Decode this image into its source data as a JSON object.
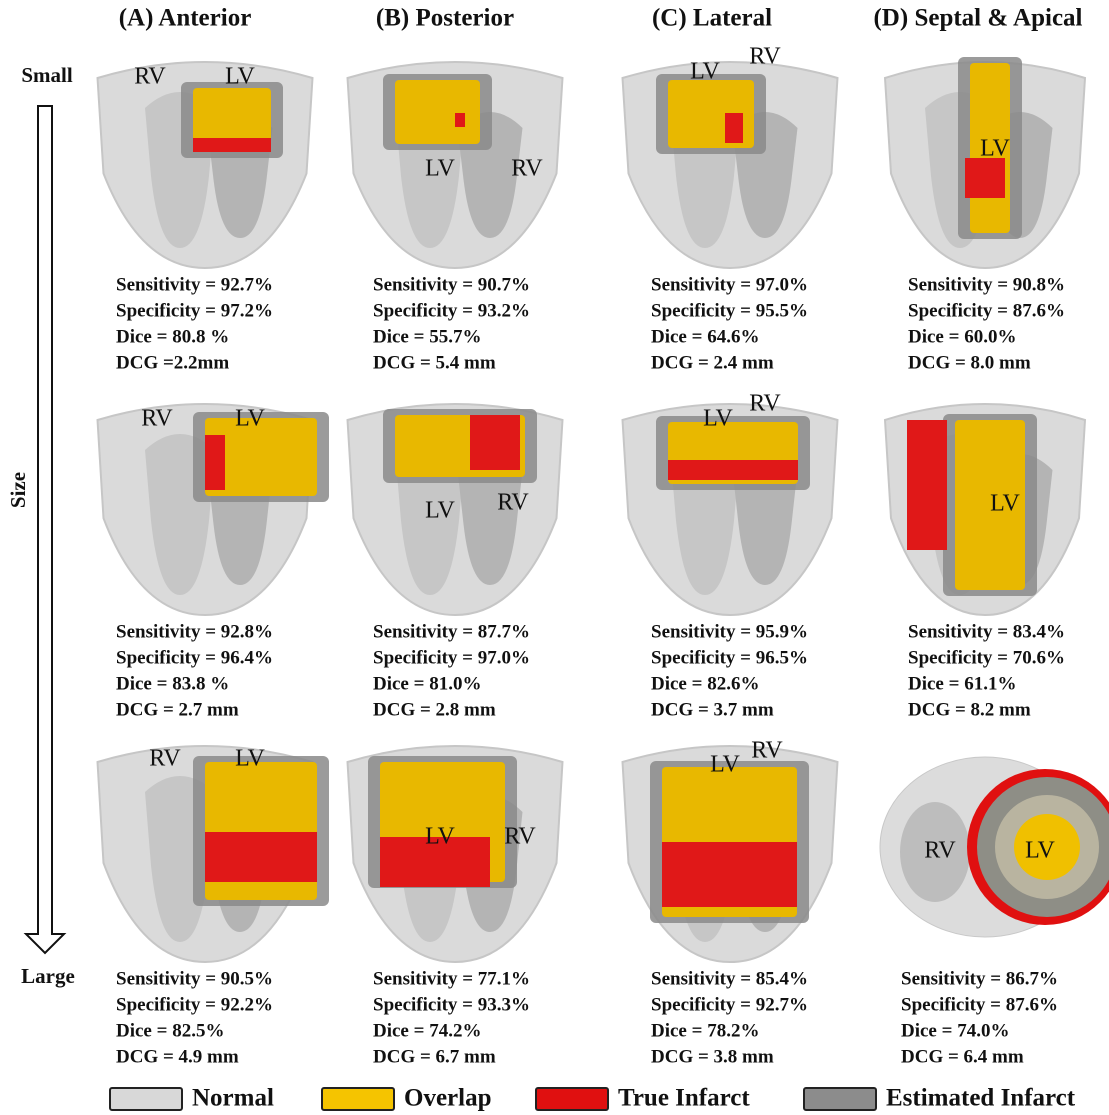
{
  "column_titles": [
    "(A) Anterior",
    "(B) Posterior",
    "(C) Lateral",
    "(D) Septal & Apical"
  ],
  "size_axis": {
    "small": "Small",
    "label": "Size",
    "large": "Large"
  },
  "panels": [
    [
      {
        "labels": [
          "RV",
          "LV"
        ],
        "metrics": [
          "Sensitivity = 92.7%",
          "Specificity = 97.2%",
          "Dice = 80.8 %",
          "DCG =2.2mm"
        ]
      },
      {
        "labels": [
          "LV",
          "RV"
        ],
        "metrics": [
          "Sensitivity = 90.7%",
          "Specificity = 93.2%",
          "Dice = 55.7%",
          "DCG = 5.4 mm"
        ]
      },
      {
        "labels": [
          "LV",
          "RV"
        ],
        "metrics": [
          "Sensitivity = 97.0%",
          "Specificity = 95.5%",
          "Dice = 64.6%",
          "DCG = 2.4 mm"
        ]
      },
      {
        "labels": [
          "LV"
        ],
        "metrics": [
          "Sensitivity = 90.8%",
          "Specificity = 87.6%",
          "Dice = 60.0%",
          "DCG = 8.0 mm"
        ]
      }
    ],
    [
      {
        "labels": [
          "RV",
          "LV"
        ],
        "metrics": [
          "Sensitivity = 92.8%",
          "Specificity = 96.4%",
          "Dice = 83.8 %",
          "DCG = 2.7 mm"
        ]
      },
      {
        "labels": [
          "LV",
          "RV"
        ],
        "metrics": [
          "Sensitivity = 87.7%",
          "Specificity = 97.0%",
          "Dice = 81.0%",
          "DCG = 2.8 mm"
        ]
      },
      {
        "labels": [
          "LV",
          "RV"
        ],
        "metrics": [
          "Sensitivity = 95.9%",
          "Specificity = 96.5%",
          "Dice = 82.6%",
          "DCG = 3.7 mm"
        ]
      },
      {
        "labels": [
          "LV"
        ],
        "metrics": [
          "Sensitivity = 83.4%",
          "Specificity = 70.6%",
          "Dice = 61.1%",
          "DCG = 8.2 mm"
        ]
      }
    ],
    [
      {
        "labels": [
          "RV",
          "LV"
        ],
        "metrics": [
          "Sensitivity = 90.5%",
          "Specificity = 92.2%",
          "Dice = 82.5%",
          "DCG = 4.9 mm"
        ]
      },
      {
        "labels": [
          "LV",
          "RV"
        ],
        "metrics": [
          "Sensitivity = 77.1%",
          "Specificity = 93.3%",
          "Dice = 74.2%",
          "DCG = 6.7 mm"
        ]
      },
      {
        "labels": [
          "LV",
          "RV"
        ],
        "metrics": [
          "Sensitivity = 85.4%",
          "Specificity = 92.7%",
          "Dice = 78.2%",
          "DCG = 3.8 mm"
        ]
      },
      {
        "labels": [
          "RV",
          "LV"
        ],
        "metrics": [
          "Sensitivity = 86.7%",
          "Specificity = 87.6%",
          "Dice = 74.0%",
          "DCG = 6.4 mm"
        ]
      }
    ]
  ],
  "legend": [
    "Normal",
    "Overlap",
    "True Infarct",
    "Estimated Infarct"
  ]
}
